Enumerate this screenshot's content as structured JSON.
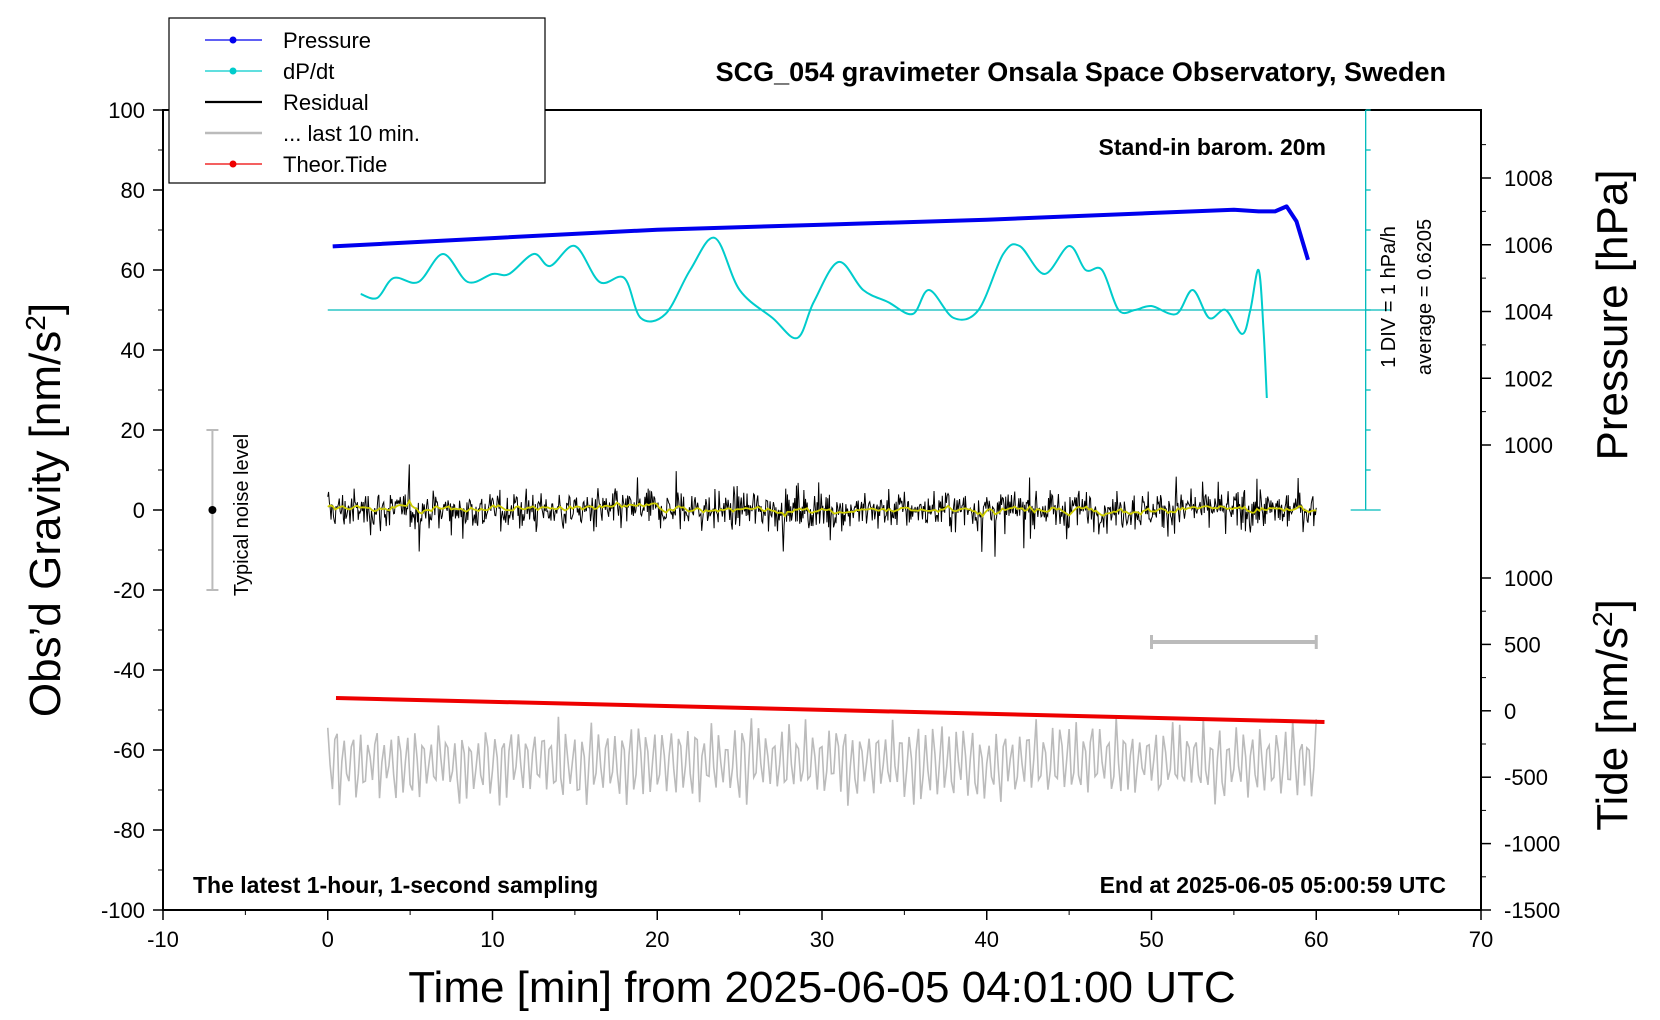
{
  "chart_data": {
    "type": "line",
    "title": "SCG_054 gravimeter Onsala Space Observatory, Sweden",
    "xlabel": "Time [min] from 2025-06-05 04:01:00 UTC",
    "xlim": [
      -10,
      70
    ],
    "x_ticks": [
      "-10",
      "0",
      "10",
      "20",
      "30",
      "40",
      "50",
      "60",
      "70"
    ],
    "left_axis": {
      "label_main": "Obs’d Gravity [nm/s",
      "label_sup": "2",
      "label_end": "]",
      "ylim": [
        -100,
        100
      ],
      "ticks": [
        "-100",
        "-80",
        "-60",
        "-40",
        "-20",
        "0",
        "20",
        "40",
        "60",
        "80",
        "100"
      ]
    },
    "pressure_axis": {
      "label": "Pressure [hPa]",
      "ticks": [
        "1000",
        "1002",
        "1004",
        "1006",
        "1008"
      ]
    },
    "tide_axis": {
      "label_main": "Tide [nm/s",
      "label_sup": "2",
      "label_end": "]",
      "ticks": [
        "-1500",
        "-1000",
        "-500",
        "0",
        "500",
        "1000"
      ]
    },
    "legend": {
      "placement": "top-left",
      "entries": [
        {
          "label": "Pressure",
          "color": "#0000ee",
          "marker": true
        },
        {
          "label": "dP/dt",
          "color": "#00cccc",
          "marker": true
        },
        {
          "label": "Residual",
          "color": "#000000",
          "marker": false
        },
        {
          "label": "... last 10 min.",
          "color": "#bbbbbb",
          "marker": false
        },
        {
          "label": "Theor.Tide",
          "color": "#ee0000",
          "marker": true
        }
      ]
    },
    "annotations": {
      "barometer": "Stand-in barom. 20m",
      "div_scale": "1 DIV = 1 hPa/h",
      "average": "average = 0.6205",
      "noise": "Typical noise level",
      "sampling": "The latest 1-hour, 1-second sampling",
      "end_time": "End at 2025-06-05 05:00:59 UTC"
    },
    "series": [
      {
        "name": "Pressure",
        "color": "#0000ee",
        "axis": "pressure",
        "x": [
          0.3,
          10,
          20,
          30,
          40,
          45,
          50,
          55,
          56.5,
          57.5,
          58.2,
          58.8,
          59.5
        ],
        "y": [
          1005.95,
          1006.2,
          1006.45,
          1006.6,
          1006.75,
          1006.85,
          1006.95,
          1007.05,
          1007.0,
          1007.0,
          1007.15,
          1006.7,
          1005.55
        ]
      },
      {
        "name": "dP/dt",
        "color": "#00cccc",
        "axis": "left",
        "x": [
          2,
          3,
          4,
          5.5,
          7,
          8.5,
          10,
          11,
          12.5,
          13.5,
          15,
          16.5,
          18,
          19,
          20.5,
          22,
          23.5,
          25,
          27,
          28.5,
          29.5,
          31,
          32.5,
          34,
          35.5,
          36.5,
          38,
          39.5,
          41,
          42,
          43.5,
          45,
          46,
          47,
          48,
          49,
          50,
          51.5,
          52.5,
          53.5,
          54.5,
          55.5,
          56,
          56.5,
          56.8,
          57
        ],
        "y": [
          54,
          53,
          58,
          57,
          64,
          57,
          59,
          59,
          64,
          61,
          66,
          57,
          58,
          48,
          49,
          60,
          68,
          55,
          48,
          43,
          52,
          62,
          55,
          52,
          49,
          55,
          48,
          50,
          64,
          66,
          59,
          66,
          60,
          60,
          50,
          50,
          51,
          49,
          55,
          48,
          50,
          44,
          50,
          60,
          45,
          28
        ]
      },
      {
        "name": "Residual",
        "color": "#000000",
        "axis": "left",
        "x_range": [
          0,
          60
        ],
        "y_amplitude": 10
      },
      {
        "name": "... last 10 min.",
        "color": "#bbbbbb",
        "axis": "left",
        "x_range": [
          0,
          60
        ],
        "y_center": -63,
        "y_amplitude": 10
      },
      {
        "name": "Theor.Tide",
        "color": "#ee0000",
        "axis": "left",
        "x": [
          0.5,
          60.5
        ],
        "y": [
          -47,
          -53
        ]
      }
    ],
    "dpdt_baseline": 50,
    "noise_bar": {
      "x": -7,
      "y_center": 0,
      "y_range": [
        -20,
        20
      ]
    },
    "last10_bar": {
      "x_range": [
        50,
        60
      ],
      "y": -33
    }
  }
}
